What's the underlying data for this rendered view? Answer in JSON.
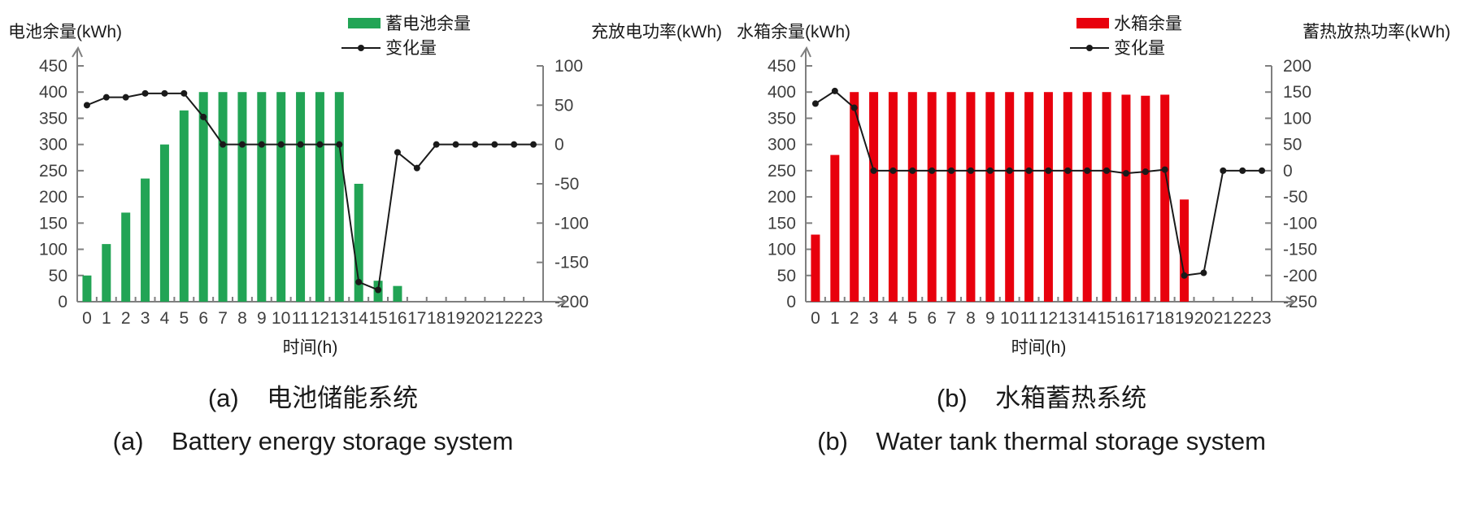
{
  "colors": {
    "battery_bar": "#22A455",
    "tank_bar": "#E8000D",
    "line": "#1A1A1A",
    "axis": "#7F7F7F",
    "tick_text": "#3F3F3F",
    "title_text": "#1A1A1A"
  },
  "chart_data": [
    {
      "id": "battery",
      "type": "bar",
      "left_axis": {
        "label": "电池余量(kWh)",
        "min": 0,
        "max": 450,
        "step": 50
      },
      "right_axis": {
        "label": "充放电功率(kWh)",
        "min": -200,
        "max": 100,
        "step": 50
      },
      "xlabel": "时间(h)",
      "categories": [
        0,
        1,
        2,
        3,
        4,
        5,
        6,
        7,
        8,
        9,
        10,
        11,
        12,
        13,
        14,
        15,
        16,
        17,
        18,
        19,
        20,
        21,
        22,
        23
      ],
      "series": [
        {
          "name": "蓄电池余量",
          "type": "bar",
          "axis": "left",
          "color": "#22A455",
          "values": [
            50,
            110,
            170,
            235,
            300,
            365,
            400,
            400,
            400,
            400,
            400,
            400,
            400,
            400,
            225,
            40,
            30,
            0,
            0,
            0,
            0,
            0,
            0,
            0
          ]
        },
        {
          "name": "变化量",
          "type": "line",
          "axis": "right",
          "color": "#1A1A1A",
          "values": [
            50,
            60,
            60,
            65,
            65,
            65,
            35,
            0,
            0,
            0,
            0,
            0,
            0,
            0,
            -175,
            -185,
            -10,
            -30,
            0,
            0,
            0,
            0,
            0,
            0
          ]
        }
      ],
      "legend_position": "top",
      "grid": false,
      "caption_zh": "(a)    电池储能系统",
      "caption_en": "(a)    Battery energy storage system"
    },
    {
      "id": "water-tank",
      "type": "bar",
      "left_axis": {
        "label": "水箱余量(kWh)",
        "min": 0,
        "max": 450,
        "step": 50
      },
      "right_axis": {
        "label": "蓄热放热功率(kWh)",
        "min": -250,
        "max": 200,
        "step": 50
      },
      "xlabel": "时间(h)",
      "categories": [
        0,
        1,
        2,
        3,
        4,
        5,
        6,
        7,
        8,
        9,
        10,
        11,
        12,
        13,
        14,
        15,
        16,
        17,
        18,
        19,
        20,
        21,
        22,
        23
      ],
      "series": [
        {
          "name": "水箱余量",
          "type": "bar",
          "axis": "left",
          "color": "#E8000D",
          "values": [
            128,
            280,
            400,
            400,
            400,
            400,
            400,
            400,
            400,
            400,
            400,
            400,
            400,
            400,
            400,
            400,
            395,
            393,
            395,
            195,
            0,
            0,
            0,
            0
          ]
        },
        {
          "name": "变化量",
          "type": "line",
          "axis": "right",
          "color": "#1A1A1A",
          "values": [
            128,
            152,
            120,
            0,
            0,
            0,
            0,
            0,
            0,
            0,
            0,
            0,
            0,
            0,
            0,
            0,
            -5,
            -2,
            2,
            -200,
            -195,
            0,
            0,
            0
          ]
        }
      ],
      "legend_position": "top",
      "grid": false,
      "caption_zh": "(b)    水箱蓄热系统",
      "caption_en": "(b)    Water tank thermal storage system"
    }
  ]
}
